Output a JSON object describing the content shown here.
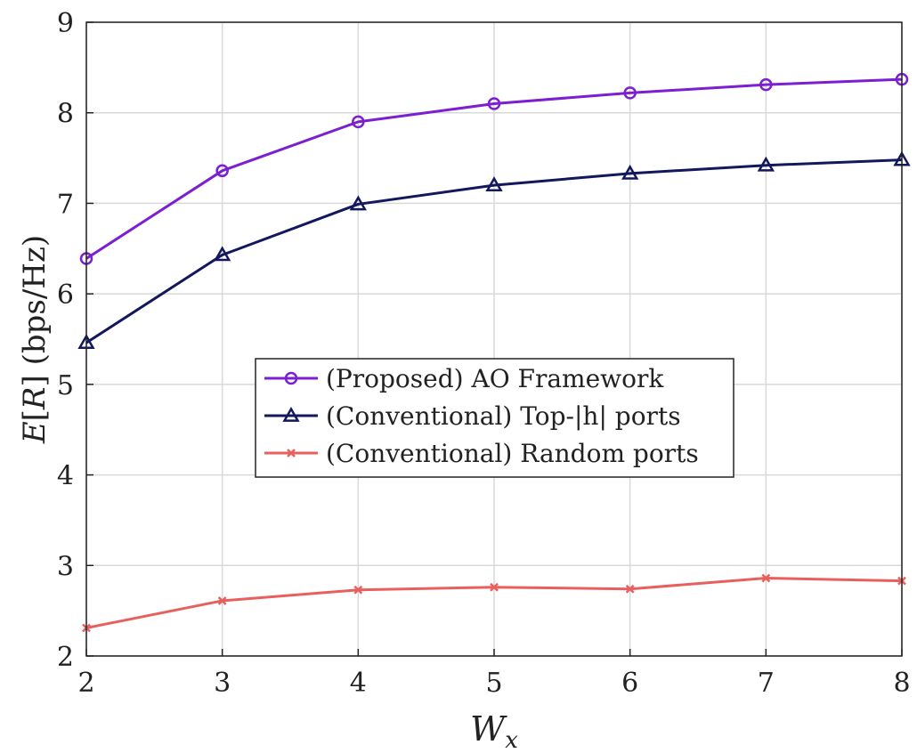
{
  "chart_data": {
    "type": "line",
    "xlabel": "W_x",
    "ylabel": "E[R] (bps/Hz)",
    "x": [
      2,
      3,
      4,
      5,
      6,
      7,
      8
    ],
    "xlim": [
      2,
      8
    ],
    "ylim": [
      2,
      9
    ],
    "xticks": [
      "2",
      "3",
      "4",
      "5",
      "6",
      "7",
      "8"
    ],
    "yticks": [
      "2",
      "3",
      "4",
      "5",
      "6",
      "7",
      "8",
      "9"
    ],
    "grid": true,
    "legend_position": "center",
    "series": [
      {
        "name": "(Proposed) AO Framework",
        "marker": "circle",
        "color": "#7b1fd1",
        "values": [
          6.39,
          7.36,
          7.9,
          8.1,
          8.22,
          8.31,
          8.37
        ]
      },
      {
        "name": "(Conventional) Top-|h| ports",
        "marker": "triangle",
        "color": "#13185c",
        "values": [
          5.46,
          6.43,
          6.99,
          7.2,
          7.33,
          7.42,
          7.48
        ]
      },
      {
        "name": "(Conventional) Random ports",
        "marker": "x",
        "color": "#e8605e",
        "values": [
          2.31,
          2.61,
          2.73,
          2.76,
          2.74,
          2.86,
          2.83
        ]
      }
    ]
  }
}
